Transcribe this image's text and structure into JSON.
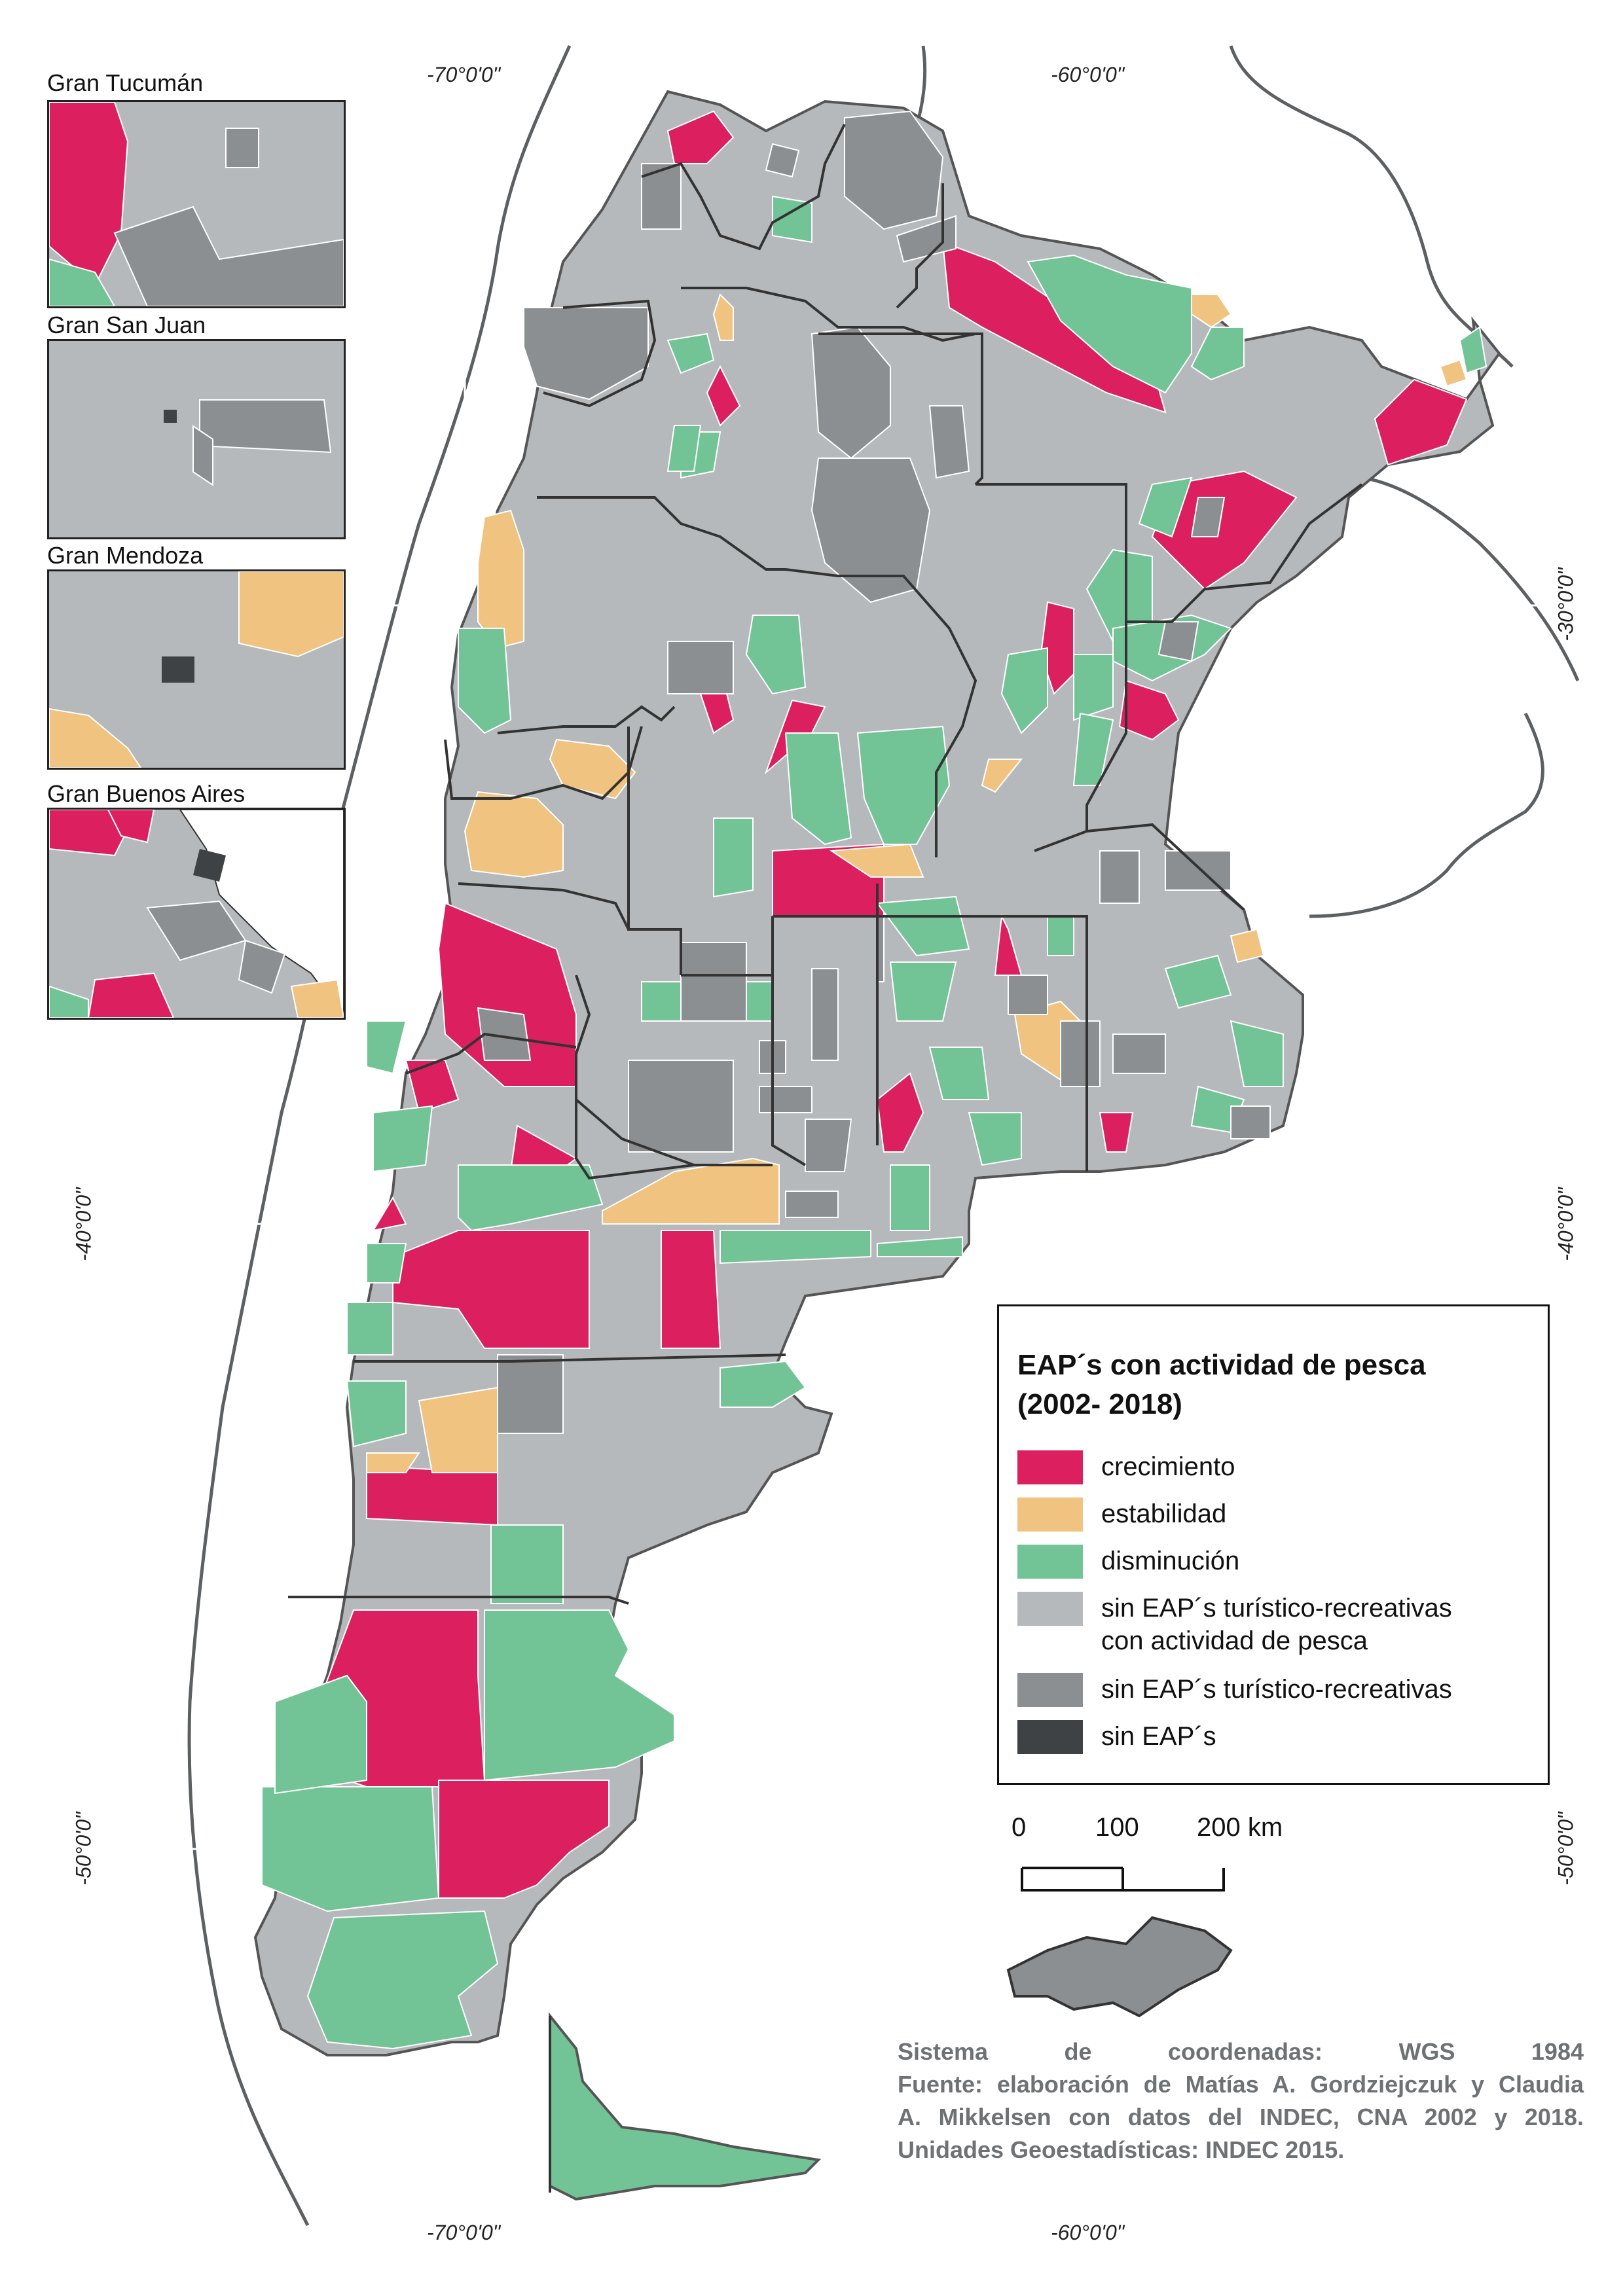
{
  "insets": [
    {
      "title": "Gran Tucumán"
    },
    {
      "title": "Gran San Juan"
    },
    {
      "title": "Gran Mendoza"
    },
    {
      "title": "Gran Buenos Aires"
    }
  ],
  "coordinates": {
    "lon_70": "-70°0'0\"",
    "lon_60": "-60°0'0\"",
    "lat_30": "-30°0'0\"",
    "lat_40": "-40°0'0\"",
    "lat_50": "-50°0'0\""
  },
  "legend": {
    "title_line1": "EAP´s con actividad de pesca",
    "title_line2": "(2002- 2018)",
    "items": [
      {
        "label": "crecimiento",
        "color": "#dc1f5e"
      },
      {
        "label": "estabilidad",
        "color": "#f0c381"
      },
      {
        "label": "disminución",
        "color": "#72c497"
      },
      {
        "label": "sin EAP´s turístico-recreativas",
        "label2": "con actividad de pesca",
        "color": "#b6b9bb"
      },
      {
        "label": "sin EAP´s turístico-recreativas",
        "color": "#8c8f91"
      },
      {
        "label": "sin EAP´s",
        "color": "#3e4244"
      }
    ]
  },
  "scale": {
    "t0": "0",
    "t1": "100",
    "t2": "200 km"
  },
  "credits": {
    "line1_a": "Sistema",
    "line1_b": "de",
    "line1_c": "coordenadas:",
    "line1_d": "WGS",
    "line1_e": "1984",
    "line2": "Fuente: elaboración de Matías A. Gordziejczuk y Claudia",
    "line3": "A. Mikkelsen con datos del INDEC, CNA 2002 y 2018.",
    "line4": "Unidades Geoestadísticas: INDEC 2015."
  }
}
